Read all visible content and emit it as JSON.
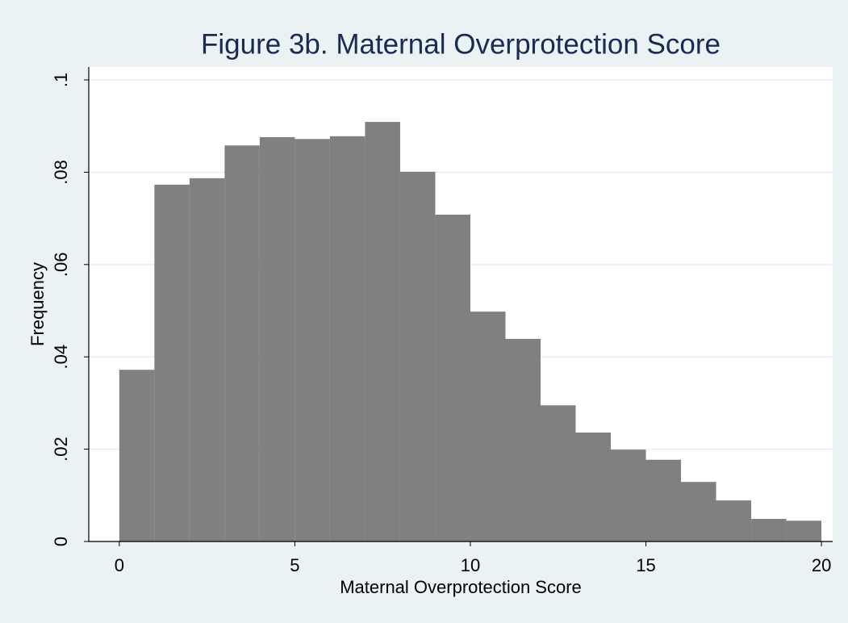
{
  "chart_data": {
    "type": "histogram",
    "title": "Figure 3b. Maternal Overprotection Score",
    "x_label": "Maternal Overprotection Score",
    "y_label": "Frequency",
    "bins": [
      0,
      1,
      2,
      3,
      4,
      5,
      6,
      7,
      8,
      9,
      10,
      11,
      12,
      13,
      14,
      15,
      16,
      17,
      18,
      19,
      20
    ],
    "values": [
      0.0372,
      0.0773,
      0.0787,
      0.0858,
      0.0876,
      0.0872,
      0.0878,
      0.0909,
      0.0801,
      0.0708,
      0.0498,
      0.0439,
      0.0295,
      0.0236,
      0.0199,
      0.0177,
      0.0129,
      0.0089,
      0.0049,
      0.0045
    ],
    "color": "#808080",
    "xlim": [
      -0.87,
      20.32
    ],
    "ylim": [
      0,
      0.1028
    ],
    "xticks": [
      0,
      5,
      10,
      15,
      20
    ],
    "yticks": [
      0,
      {
        "value": 0.02,
        "label": ".02"
      },
      {
        "value": 0.04,
        "label": ".04"
      },
      {
        "value": 0.06,
        "label": ".06"
      },
      {
        "value": 0.08,
        "label": ".08"
      },
      {
        "value": 0.1,
        "label": ".1"
      }
    ],
    "grid": true
  }
}
